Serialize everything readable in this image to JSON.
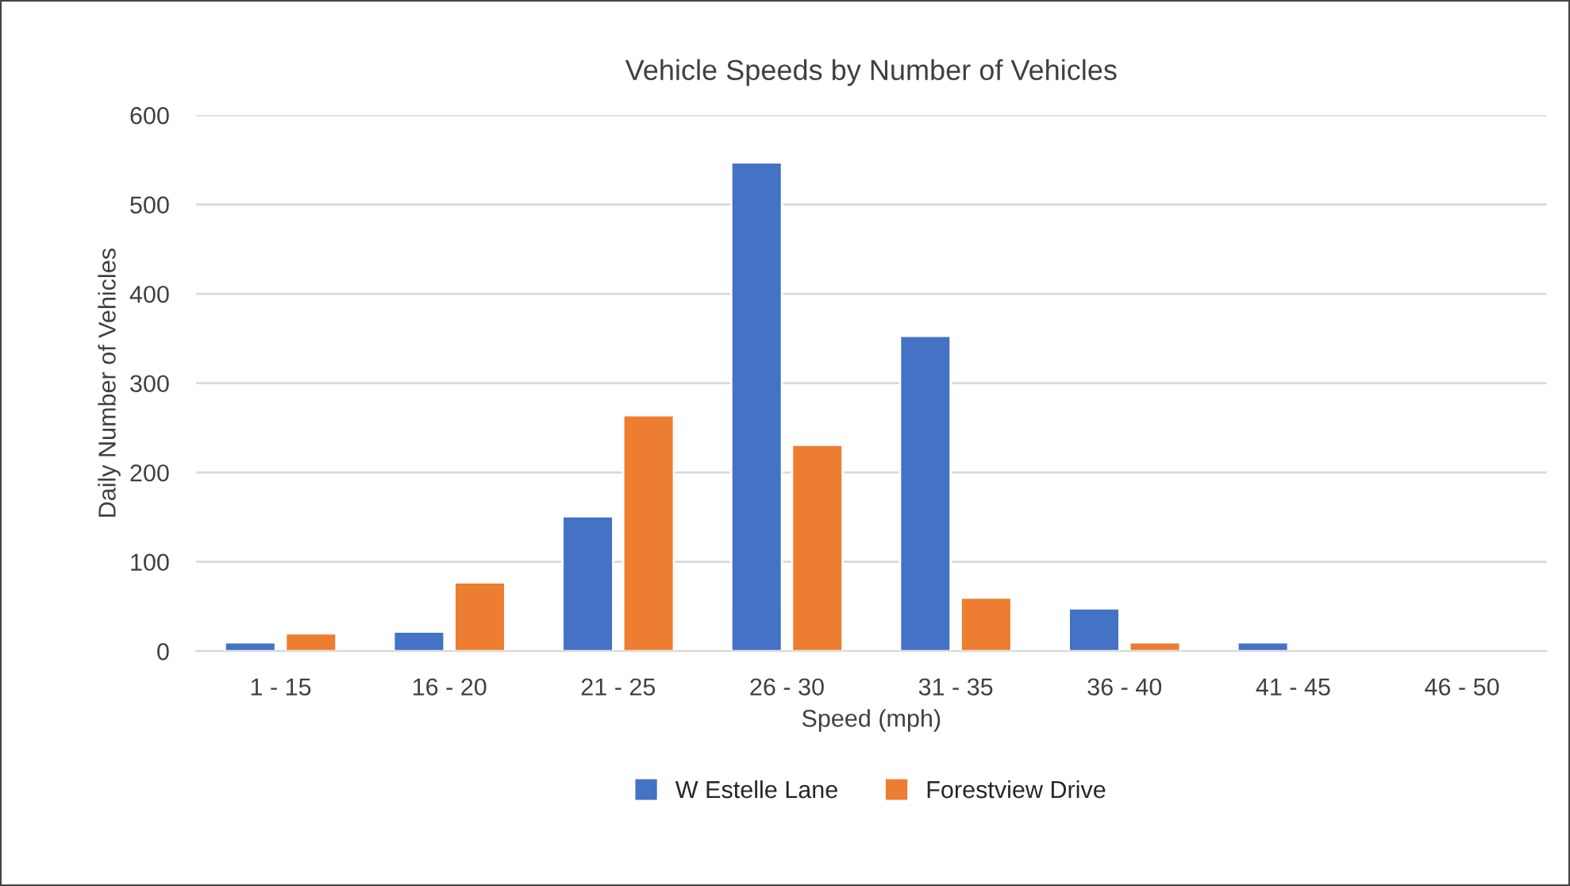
{
  "chart_data": {
    "type": "bar",
    "title": "Vehicle Speeds by Number of Vehicles",
    "xlabel": "Speed (mph)",
    "ylabel": "Daily Number of Vehicles",
    "categories": [
      "1 - 15",
      "16 - 20",
      "21 - 25",
      "26 - 30",
      "31 - 35",
      "36 - 40",
      "41 - 45",
      "46 - 50"
    ],
    "series": [
      {
        "name": "W Estelle Lane",
        "color": "#4472c4",
        "values": [
          10,
          22,
          151,
          547,
          353,
          48,
          10,
          null
        ]
      },
      {
        "name": "Forestview Drive",
        "color": "#ed7d31",
        "values": [
          20,
          77,
          264,
          231,
          60,
          10,
          null,
          null
        ]
      }
    ],
    "ylim": [
      0,
      600
    ],
    "yticks": [
      0,
      100,
      200,
      300,
      400,
      500,
      600
    ],
    "grid": "y",
    "legend": "bottom"
  }
}
